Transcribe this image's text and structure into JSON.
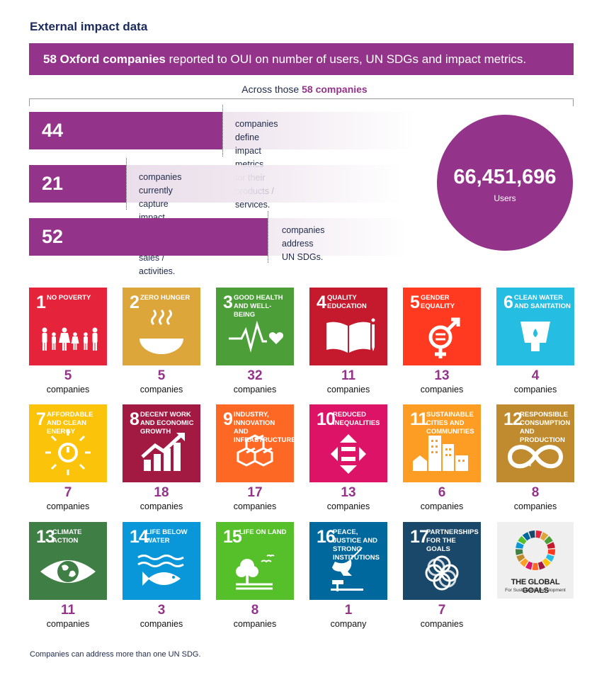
{
  "heading": "External impact data",
  "banner": {
    "bold": "58 Oxford companies",
    "rest": " reported to OUI on number of users, UN SDGs and impact metrics."
  },
  "across": {
    "prefix": "Across those ",
    "highlight": "58 companies"
  },
  "stats": [
    {
      "value": "44",
      "line1": "companies define impact metrics",
      "line2": "for their products / services."
    },
    {
      "value": "21",
      "line1": "companies currently capture impact",
      "line2": "data from current sales / activities."
    },
    {
      "value": "52",
      "line1": "companies address",
      "line2": "UN SDGs."
    }
  ],
  "users": {
    "value": "66,451,696",
    "label": "Users"
  },
  "sdgs": [
    {
      "num": "1",
      "title": "No poverty",
      "color": "#e5243b",
      "icon": "family-icon",
      "count": "5",
      "unit": "companies"
    },
    {
      "num": "2",
      "title": "Zero hunger",
      "color": "#dda63a",
      "icon": "bowl-icon",
      "count": "5",
      "unit": "companies"
    },
    {
      "num": "3",
      "title": "Good health and well-being",
      "color": "#4c9f38",
      "icon": "heartbeat-icon",
      "count": "32",
      "unit": "companies"
    },
    {
      "num": "4",
      "title": "Quality education",
      "color": "#c5192d",
      "icon": "book-icon",
      "count": "11",
      "unit": "companies"
    },
    {
      "num": "5",
      "title": "Gender equality",
      "color": "#ff3a21",
      "icon": "gender-icon",
      "count": "13",
      "unit": "companies"
    },
    {
      "num": "6",
      "title": "Clean water and sanitation",
      "color": "#26bde2",
      "icon": "water-icon",
      "count": "4",
      "unit": "companies"
    },
    {
      "num": "7",
      "title": "Affordable and clean energy",
      "color": "#fcc30b",
      "icon": "sun-power-icon",
      "count": "7",
      "unit": "companies"
    },
    {
      "num": "8",
      "title": "Decent work and economic growth",
      "color": "#a21942",
      "icon": "growth-chart-icon",
      "count": "18",
      "unit": "companies"
    },
    {
      "num": "9",
      "title": "Industry, innovation and infrastructure",
      "color": "#fd6925",
      "icon": "cubes-icon",
      "count": "17",
      "unit": "companies"
    },
    {
      "num": "10",
      "title": "Reduced inequalities",
      "color": "#dd1367",
      "icon": "equal-arrows-icon",
      "count": "13",
      "unit": "companies"
    },
    {
      "num": "11",
      "title": "Sustainable cities and communities",
      "color": "#fd9d24",
      "icon": "city-icon",
      "count": "6",
      "unit": "companies"
    },
    {
      "num": "12",
      "title": "Responsible consumption and production",
      "color": "#bf8b2e",
      "icon": "infinity-icon",
      "count": "8",
      "unit": "companies"
    },
    {
      "num": "13",
      "title": "Climate action",
      "color": "#3f7e44",
      "icon": "earth-eye-icon",
      "count": "11",
      "unit": "companies"
    },
    {
      "num": "14",
      "title": "Life below water",
      "color": "#0a97d9",
      "icon": "fish-icon",
      "count": "3",
      "unit": "companies"
    },
    {
      "num": "15",
      "title": "Life on land",
      "color": "#56c02b",
      "icon": "tree-icon",
      "count": "8",
      "unit": "companies"
    },
    {
      "num": "16",
      "title": "Peace, justice and strong institutions",
      "color": "#00689d",
      "icon": "dove-icon",
      "count": "1",
      "unit": "company"
    },
    {
      "num": "17",
      "title": "Partnerships for the goals",
      "color": "#19486a",
      "icon": "rings-icon",
      "count": "7",
      "unit": "companies"
    }
  ],
  "global_goals": {
    "title": "THE GLOBAL GOALS",
    "subtitle": "For Sustainable Development"
  },
  "footnote": "Companies can address more than one UN SDG."
}
